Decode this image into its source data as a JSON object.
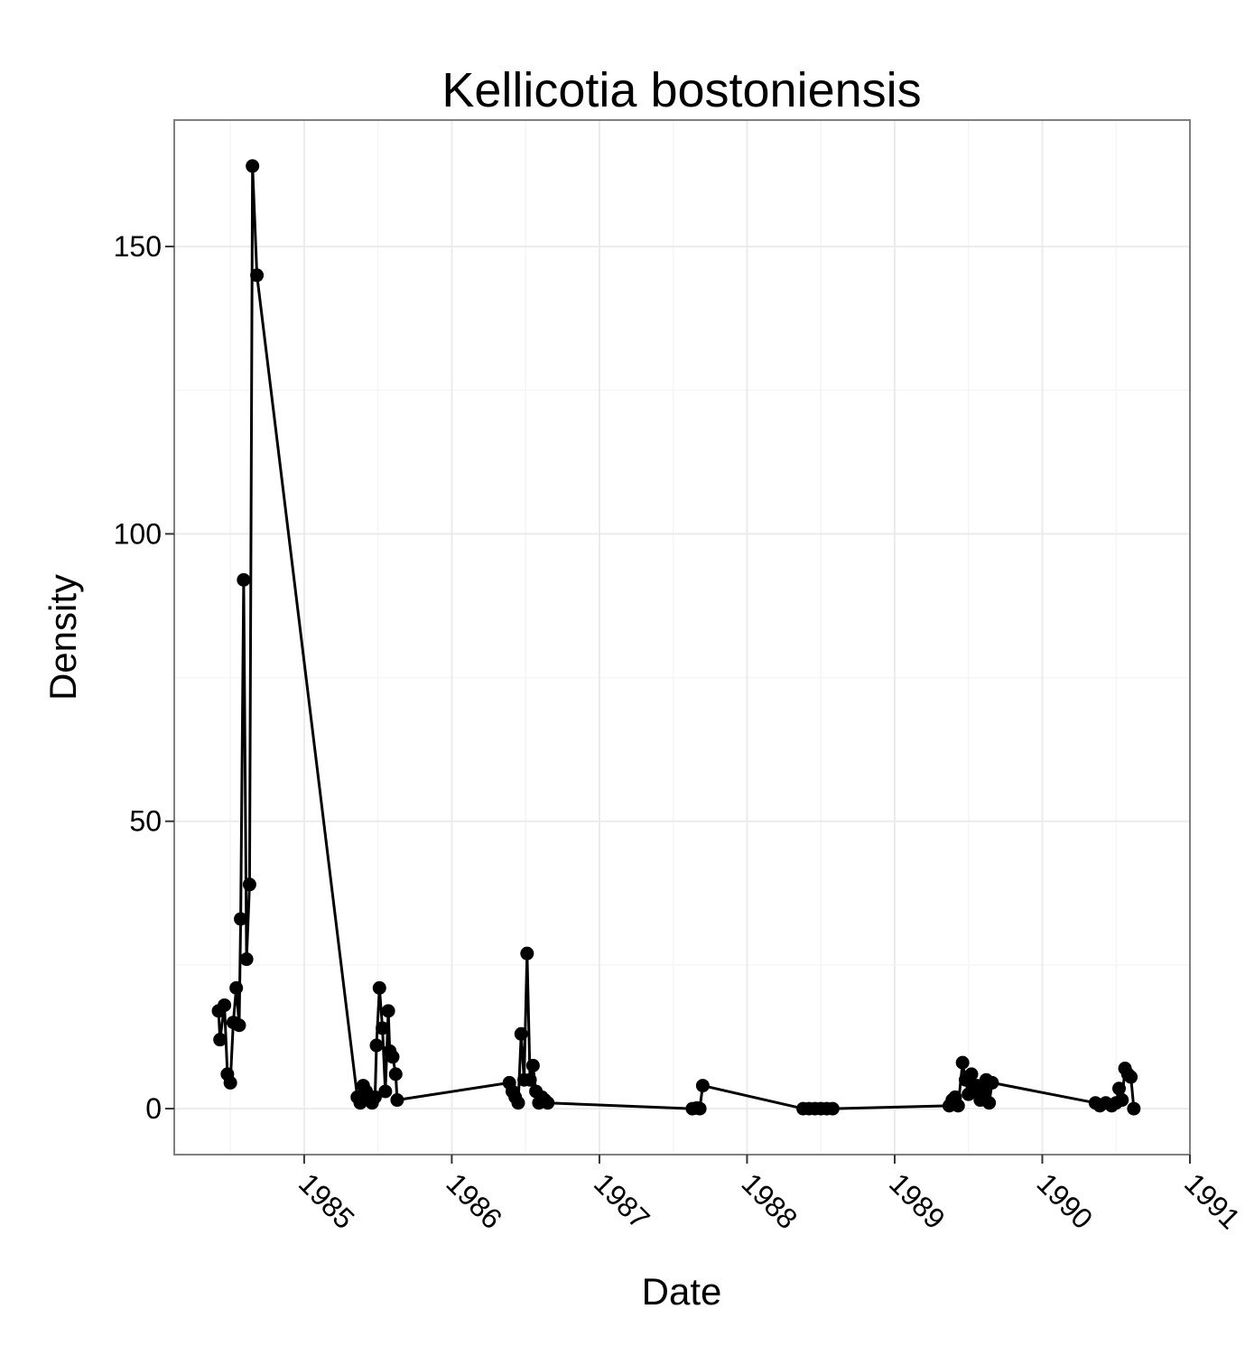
{
  "chart_data": {
    "type": "line",
    "title": "Kellicotia bostoniensis",
    "xlabel": "Date",
    "ylabel": "Density",
    "xlim": [
      1984.12,
      1991.0
    ],
    "ylim": [
      -8,
      172
    ],
    "x_ticks": [
      1985,
      1986,
      1987,
      1988,
      1989,
      1990,
      1991
    ],
    "x_tick_labels": [
      "1985",
      "1986",
      "1987",
      "1988",
      "1989",
      "1990",
      "1991"
    ],
    "y_ticks": [
      0,
      50,
      100,
      150
    ],
    "y_tick_labels": [
      "0",
      "50",
      "100",
      "150"
    ],
    "grid": true,
    "colors": {
      "line": "#000000",
      "grid_major": "#ebebeb",
      "grid_minor": "#f5f5f5",
      "border": "#7f7f7f"
    },
    "series": [
      {
        "name": "Density",
        "points": [
          [
            1984.42,
            17
          ],
          [
            1984.43,
            12
          ],
          [
            1984.46,
            18
          ],
          [
            1984.48,
            6
          ],
          [
            1984.5,
            4.5
          ],
          [
            1984.52,
            15
          ],
          [
            1984.54,
            21
          ],
          [
            1984.56,
            14.5
          ],
          [
            1984.57,
            33
          ],
          [
            1984.59,
            92
          ],
          [
            1984.61,
            26
          ],
          [
            1984.63,
            39
          ],
          [
            1984.65,
            164
          ],
          [
            1984.68,
            145
          ],
          [
            1985.36,
            2
          ],
          [
            1985.38,
            1
          ],
          [
            1985.4,
            4
          ],
          [
            1985.42,
            3
          ],
          [
            1985.44,
            2
          ],
          [
            1985.46,
            1
          ],
          [
            1985.48,
            2
          ],
          [
            1985.49,
            11
          ],
          [
            1985.51,
            21
          ],
          [
            1985.53,
            14
          ],
          [
            1985.55,
            3
          ],
          [
            1985.57,
            17
          ],
          [
            1985.58,
            10
          ],
          [
            1985.6,
            9
          ],
          [
            1985.62,
            6
          ],
          [
            1985.63,
            1.5
          ],
          [
            1986.39,
            4.5
          ],
          [
            1986.41,
            3
          ],
          [
            1986.43,
            2
          ],
          [
            1986.45,
            1
          ],
          [
            1986.47,
            13
          ],
          [
            1986.49,
            5
          ],
          [
            1986.51,
            27
          ],
          [
            1986.53,
            5
          ],
          [
            1986.55,
            7.5
          ],
          [
            1986.57,
            3
          ],
          [
            1986.59,
            1
          ],
          [
            1986.61,
            2
          ],
          [
            1986.63,
            1.5
          ],
          [
            1986.65,
            1
          ],
          [
            1987.63,
            0
          ],
          [
            1987.66,
            0.1
          ],
          [
            1987.68,
            0
          ],
          [
            1987.7,
            4
          ],
          [
            1988.38,
            0
          ],
          [
            1988.42,
            0
          ],
          [
            1988.46,
            0
          ],
          [
            1988.5,
            0
          ],
          [
            1988.54,
            0
          ],
          [
            1988.58,
            0
          ],
          [
            1989.37,
            0.5
          ],
          [
            1989.39,
            1.5
          ],
          [
            1989.41,
            2
          ],
          [
            1989.43,
            0.5
          ],
          [
            1989.46,
            8
          ],
          [
            1989.48,
            5
          ],
          [
            1989.5,
            2.5
          ],
          [
            1989.52,
            6
          ],
          [
            1989.54,
            3
          ],
          [
            1989.56,
            4
          ],
          [
            1989.58,
            1.5
          ],
          [
            1989.6,
            3
          ],
          [
            1989.62,
            5
          ],
          [
            1989.64,
            1
          ],
          [
            1989.66,
            4.5
          ],
          [
            1990.36,
            1
          ],
          [
            1990.39,
            0.5
          ],
          [
            1990.43,
            1
          ],
          [
            1990.47,
            0.5
          ],
          [
            1990.5,
            1
          ],
          [
            1990.52,
            3.5
          ],
          [
            1990.54,
            1.5
          ],
          [
            1990.56,
            7
          ],
          [
            1990.58,
            6
          ],
          [
            1990.6,
            5.5
          ],
          [
            1990.62,
            0
          ]
        ]
      }
    ]
  }
}
